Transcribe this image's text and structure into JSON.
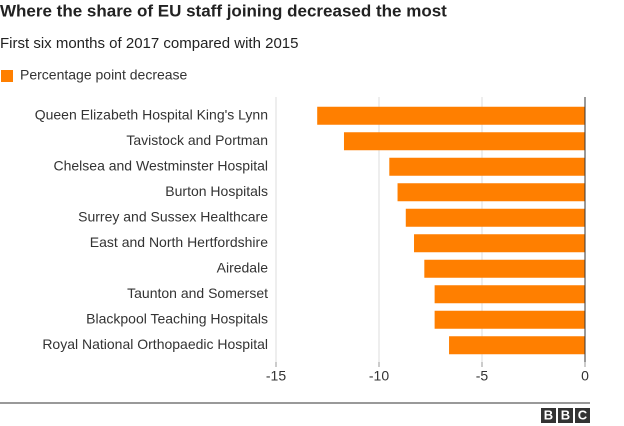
{
  "chart_data": {
    "type": "bar",
    "orientation": "horizontal",
    "title": "Where the share of EU staff joining decreased the most",
    "subtitle": "First six months of 2017 compared with 2015",
    "categories": [
      "Queen Elizabeth Hospital King's Lynn",
      "Tavistock and Portman",
      "Chelsea and Westminster Hospital",
      "Burton Hospitals",
      "Surrey and Sussex Healthcare",
      "East and North Hertfordshire",
      "Airedale",
      "Taunton and Somerset",
      "Blackpool Teaching Hospitals",
      "Royal National Orthopaedic Hospital"
    ],
    "series": [
      {
        "name": "Percentage point decrease",
        "color": "#ff7f00",
        "values": [
          -13.0,
          -11.7,
          -9.5,
          -9.1,
          -8.7,
          -8.3,
          -7.8,
          -7.3,
          -7.3,
          -6.6
        ]
      }
    ],
    "xlim": [
      -15,
      0
    ],
    "xticks": [
      -15,
      -10,
      -5,
      0
    ],
    "grid": true,
    "logo": [
      "B",
      "B",
      "C"
    ]
  }
}
